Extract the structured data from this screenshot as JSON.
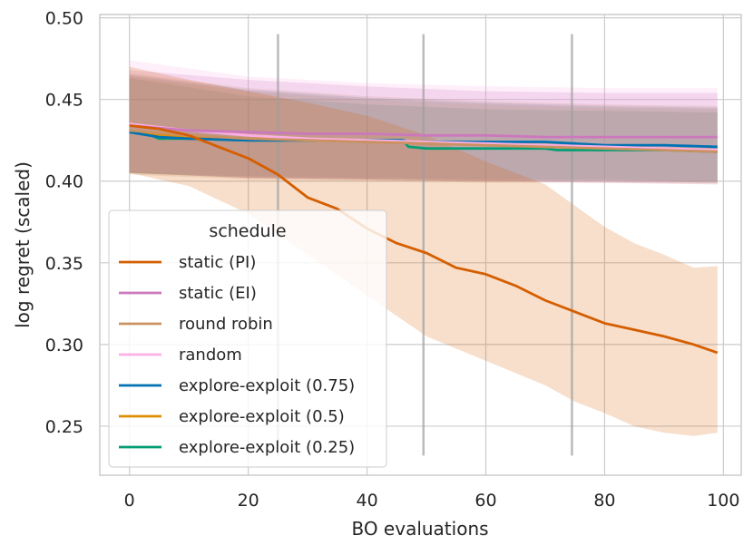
{
  "chart_data": {
    "type": "line",
    "title": "",
    "xlabel": "BO evaluations",
    "ylabel": "log regret (scaled)",
    "xlim": [
      -5,
      103
    ],
    "ylim": [
      0.22,
      0.502
    ],
    "xticks": [
      0,
      20,
      40,
      60,
      80,
      100
    ],
    "yticks": [
      0.25,
      0.3,
      0.35,
      0.4,
      0.45,
      0.5
    ],
    "xtick_labels": [
      "0",
      "20",
      "40",
      "60",
      "80",
      "100"
    ],
    "ytick_labels": [
      "0.25",
      "0.30",
      "0.35",
      "0.40",
      "0.45",
      "0.50"
    ],
    "grid": true,
    "legend": {
      "title": "schedule",
      "placement": "lower-left"
    },
    "vlines": [
      {
        "x": 25,
        "y0": 0.232,
        "y1": 0.49
      },
      {
        "x": 49.5,
        "y0": 0.232,
        "y1": 0.49
      },
      {
        "x": 74.5,
        "y0": 0.232,
        "y1": 0.49
      }
    ],
    "series": [
      {
        "name": "static (PI)",
        "color": "#d55e00",
        "points": [
          [
            0,
            0.434
          ],
          [
            5,
            0.432
          ],
          [
            10,
            0.428
          ],
          [
            15,
            0.421
          ],
          [
            20,
            0.414
          ],
          [
            25,
            0.404
          ],
          [
            30,
            0.39
          ],
          [
            35,
            0.383
          ],
          [
            40,
            0.371
          ],
          [
            45,
            0.362
          ],
          [
            50,
            0.356
          ],
          [
            55,
            0.347
          ],
          [
            60,
            0.343
          ],
          [
            65,
            0.336
          ],
          [
            70,
            0.327
          ],
          [
            75,
            0.32
          ],
          [
            80,
            0.313
          ],
          [
            85,
            0.309
          ],
          [
            90,
            0.305
          ],
          [
            95,
            0.3
          ],
          [
            99,
            0.295
          ]
        ],
        "band_upper": [
          [
            0,
            0.47
          ],
          [
            10,
            0.462
          ],
          [
            20,
            0.455
          ],
          [
            30,
            0.448
          ],
          [
            40,
            0.44
          ],
          [
            50,
            0.428
          ],
          [
            60,
            0.412
          ],
          [
            70,
            0.398
          ],
          [
            75,
            0.385
          ],
          [
            80,
            0.372
          ],
          [
            85,
            0.362
          ],
          [
            90,
            0.355
          ],
          [
            95,
            0.347
          ],
          [
            99,
            0.348
          ]
        ],
        "band_lower": [
          [
            0,
            0.405
          ],
          [
            10,
            0.397
          ],
          [
            20,
            0.38
          ],
          [
            30,
            0.355
          ],
          [
            40,
            0.33
          ],
          [
            50,
            0.305
          ],
          [
            60,
            0.29
          ],
          [
            70,
            0.275
          ],
          [
            75,
            0.265
          ],
          [
            80,
            0.258
          ],
          [
            85,
            0.25
          ],
          [
            90,
            0.246
          ],
          [
            95,
            0.244
          ],
          [
            99,
            0.246
          ]
        ]
      },
      {
        "name": "static (EI)",
        "color": "#cc78bc",
        "points": [
          [
            0,
            0.434
          ],
          [
            10,
            0.431
          ],
          [
            20,
            0.43
          ],
          [
            30,
            0.429
          ],
          [
            40,
            0.429
          ],
          [
            50,
            0.428
          ],
          [
            60,
            0.428
          ],
          [
            70,
            0.427
          ],
          [
            80,
            0.427
          ],
          [
            90,
            0.427
          ],
          [
            99,
            0.427
          ]
        ],
        "band_upper": [
          [
            0,
            0.468
          ],
          [
            20,
            0.462
          ],
          [
            40,
            0.458
          ],
          [
            60,
            0.455
          ],
          [
            80,
            0.454
          ],
          [
            99,
            0.454
          ]
        ],
        "band_lower": [
          [
            0,
            0.405
          ],
          [
            20,
            0.402
          ],
          [
            40,
            0.401
          ],
          [
            60,
            0.4
          ],
          [
            80,
            0.399
          ],
          [
            99,
            0.399
          ]
        ]
      },
      {
        "name": "round robin",
        "color": "#ca9161",
        "points": [
          [
            0,
            0.431
          ],
          [
            10,
            0.428
          ],
          [
            20,
            0.426
          ],
          [
            30,
            0.425
          ],
          [
            40,
            0.424
          ],
          [
            50,
            0.423
          ],
          [
            60,
            0.422
          ],
          [
            70,
            0.421
          ],
          [
            80,
            0.42
          ],
          [
            90,
            0.419
          ],
          [
            99,
            0.418
          ]
        ],
        "band_upper": [
          [
            0,
            0.466
          ],
          [
            20,
            0.457
          ],
          [
            40,
            0.452
          ],
          [
            60,
            0.449
          ],
          [
            80,
            0.447
          ],
          [
            99,
            0.446
          ]
        ],
        "band_lower": [
          [
            0,
            0.404
          ],
          [
            20,
            0.401
          ],
          [
            40,
            0.4
          ],
          [
            60,
            0.399
          ],
          [
            80,
            0.399
          ],
          [
            99,
            0.398
          ]
        ]
      },
      {
        "name": "random",
        "color": "#fbafe4",
        "points": [
          [
            0,
            0.435
          ],
          [
            10,
            0.431
          ],
          [
            20,
            0.428
          ],
          [
            30,
            0.426
          ],
          [
            40,
            0.425
          ],
          [
            50,
            0.424
          ],
          [
            60,
            0.423
          ],
          [
            70,
            0.422
          ],
          [
            80,
            0.421
          ],
          [
            90,
            0.42
          ],
          [
            99,
            0.419
          ]
        ],
        "band_upper": [
          [
            0,
            0.474
          ],
          [
            20,
            0.464
          ],
          [
            40,
            0.46
          ],
          [
            60,
            0.458
          ],
          [
            80,
            0.457
          ],
          [
            99,
            0.457
          ]
        ],
        "band_lower": [
          [
            0,
            0.406
          ],
          [
            20,
            0.402
          ],
          [
            40,
            0.401
          ],
          [
            60,
            0.4
          ],
          [
            80,
            0.399
          ],
          [
            99,
            0.398
          ]
        ]
      },
      {
        "name": "explore-exploit (0.75)",
        "color": "#0173b2",
        "points": [
          [
            0,
            0.43
          ],
          [
            5,
            0.427
          ],
          [
            10,
            0.426
          ],
          [
            20,
            0.425
          ],
          [
            30,
            0.425
          ],
          [
            40,
            0.425
          ],
          [
            46,
            0.425
          ],
          [
            47,
            0.424
          ],
          [
            60,
            0.424
          ],
          [
            70,
            0.424
          ],
          [
            75,
            0.423
          ],
          [
            80,
            0.422
          ],
          [
            90,
            0.422
          ],
          [
            99,
            0.421
          ]
        ],
        "band_upper": [
          [
            0,
            0.465
          ],
          [
            20,
            0.456
          ],
          [
            40,
            0.451
          ],
          [
            60,
            0.448
          ],
          [
            80,
            0.446
          ],
          [
            99,
            0.445
          ]
        ],
        "band_lower": [
          [
            0,
            0.405
          ],
          [
            20,
            0.402
          ],
          [
            40,
            0.401
          ],
          [
            60,
            0.4
          ],
          [
            80,
            0.4
          ],
          [
            99,
            0.399
          ]
        ]
      },
      {
        "name": "explore-exploit (0.5)",
        "color": "#de8f05",
        "points": [
          [
            0,
            0.431
          ],
          [
            5,
            0.428
          ],
          [
            10,
            0.427
          ],
          [
            20,
            0.426
          ],
          [
            30,
            0.426
          ],
          [
            40,
            0.425
          ],
          [
            50,
            0.424
          ],
          [
            55,
            0.423
          ],
          [
            60,
            0.423
          ],
          [
            70,
            0.422
          ],
          [
            80,
            0.421
          ],
          [
            90,
            0.42
          ],
          [
            99,
            0.419
          ]
        ],
        "band_upper": [
          [
            0,
            0.464
          ],
          [
            20,
            0.455
          ],
          [
            40,
            0.45
          ],
          [
            60,
            0.447
          ],
          [
            80,
            0.445
          ],
          [
            99,
            0.444
          ]
        ],
        "band_lower": [
          [
            0,
            0.405
          ],
          [
            20,
            0.402
          ],
          [
            40,
            0.401
          ],
          [
            60,
            0.4
          ],
          [
            80,
            0.4
          ],
          [
            99,
            0.399
          ]
        ]
      },
      {
        "name": "explore-exploit (0.25)",
        "color": "#029e73",
        "points": [
          [
            0,
            0.43
          ],
          [
            3,
            0.429
          ],
          [
            5,
            0.426
          ],
          [
            10,
            0.426
          ],
          [
            20,
            0.425
          ],
          [
            30,
            0.425
          ],
          [
            40,
            0.425
          ],
          [
            46,
            0.425
          ],
          [
            47,
            0.421
          ],
          [
            50,
            0.42
          ],
          [
            60,
            0.42
          ],
          [
            70,
            0.42
          ],
          [
            72,
            0.419
          ],
          [
            80,
            0.419
          ],
          [
            90,
            0.419
          ],
          [
            99,
            0.418
          ]
        ],
        "band_upper": [
          [
            0,
            0.463
          ],
          [
            20,
            0.452
          ],
          [
            40,
            0.447
          ],
          [
            60,
            0.444
          ],
          [
            80,
            0.443
          ],
          [
            99,
            0.442
          ]
        ],
        "band_lower": [
          [
            0,
            0.405
          ],
          [
            20,
            0.403
          ],
          [
            40,
            0.402
          ],
          [
            60,
            0.401
          ],
          [
            80,
            0.401
          ],
          [
            99,
            0.4
          ]
        ]
      }
    ]
  }
}
